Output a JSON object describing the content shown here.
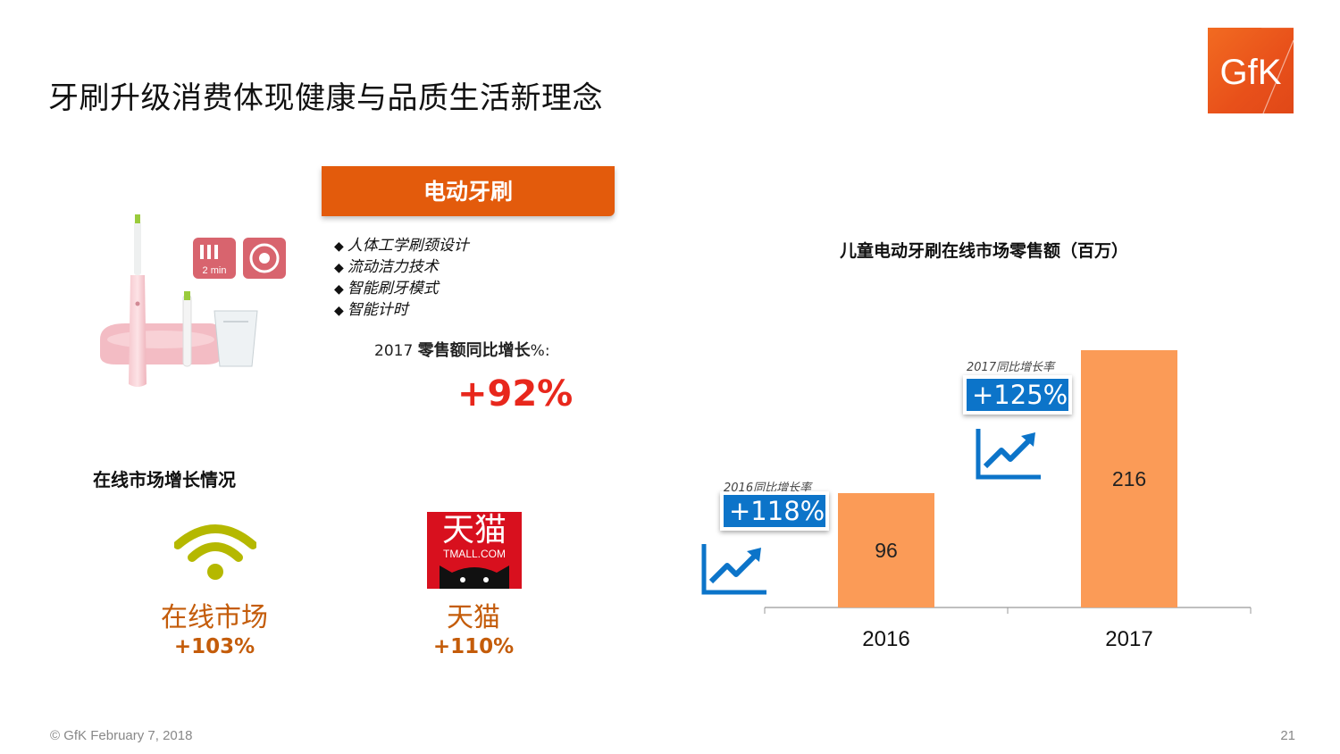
{
  "page": {
    "title": "牙刷升级消费体现健康与品质生活新理念",
    "logo_text": "GfK",
    "footer": "© GfK February 7, 2018",
    "page_number": "21"
  },
  "left_panel": {
    "banner": "电动牙刷",
    "features": [
      "人体工学刷颈设计",
      "流动洁力技术",
      "智能刷牙模式",
      "智能计时"
    ],
    "feature_bullet": "◆",
    "product_badge": "2 min",
    "growth_label_prefix": "2017 ",
    "growth_label_cn": "零售额同比增长",
    "growth_label_suffix": "%:",
    "growth_value": "+92%",
    "online_growth_title": "在线市场增长情况",
    "online_market": {
      "name": "在线市场",
      "growth": "+103%",
      "icon": "wifi-icon",
      "color": "#b5b800"
    },
    "tmall": {
      "name": "天猫",
      "growth": "+110%",
      "logo_cn": "天猫",
      "logo_en": "TMALL.COM",
      "color": "#d8101e"
    }
  },
  "chart_data": {
    "type": "bar",
    "title": "儿童电动牙刷在线市场零售额（百万）",
    "categories": [
      "2016",
      "2017"
    ],
    "values": [
      96,
      216
    ],
    "ylim": [
      0,
      240
    ],
    "bar_color": "#fb9b57",
    "grid": false,
    "annotations": [
      {
        "category": "2016",
        "caption": "2016同比增长率",
        "value": "+118%"
      },
      {
        "category": "2017",
        "caption": "2017同比增长率",
        "value": "+125%"
      }
    ]
  },
  "colors": {
    "accent_orange": "#e35b0c",
    "growth_red": "#e8271c",
    "text_orange": "#c45c0a",
    "rate_blue": "#0c74c9"
  }
}
